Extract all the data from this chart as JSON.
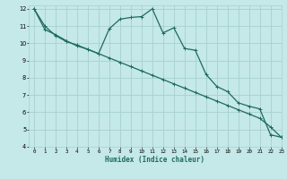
{
  "xlabel": "Humidex (Indice chaleur)",
  "ylabel": "",
  "bg_color": "#c5e8e8",
  "grid_color": "#a8d0d0",
  "line_color": "#1e6b5e",
  "xlim": [
    -0.5,
    23
  ],
  "ylim": [
    4,
    12.2
  ],
  "yticks": [
    4,
    5,
    6,
    7,
    8,
    9,
    10,
    11,
    12
  ],
  "xticks": [
    0,
    1,
    2,
    3,
    4,
    5,
    6,
    7,
    8,
    9,
    10,
    11,
    12,
    13,
    14,
    15,
    16,
    17,
    18,
    19,
    20,
    21,
    22,
    23
  ],
  "line1_x": [
    0,
    1,
    2,
    3,
    4,
    5,
    6,
    7,
    8,
    9,
    10,
    11,
    12,
    13,
    14,
    15,
    16,
    17,
    18,
    19,
    20,
    21,
    22,
    23
  ],
  "line1_y": [
    12.0,
    10.8,
    10.5,
    10.15,
    9.85,
    9.65,
    9.4,
    10.85,
    11.4,
    11.5,
    11.55,
    12.0,
    10.6,
    10.9,
    9.7,
    9.6,
    8.2,
    7.5,
    7.2,
    6.55,
    6.35,
    6.2,
    4.7,
    4.55
  ],
  "line2_x": [
    0,
    1,
    2,
    3,
    4,
    5,
    6,
    7,
    8,
    9,
    10,
    11,
    12,
    13,
    14,
    15,
    16,
    17,
    18,
    19,
    20,
    21,
    22,
    23
  ],
  "line2_y": [
    12.0,
    11.0,
    10.45,
    10.1,
    9.9,
    9.65,
    9.4,
    9.15,
    8.9,
    8.65,
    8.4,
    8.15,
    7.9,
    7.65,
    7.4,
    7.15,
    6.9,
    6.65,
    6.4,
    6.15,
    5.9,
    5.65,
    5.15,
    4.55
  ]
}
